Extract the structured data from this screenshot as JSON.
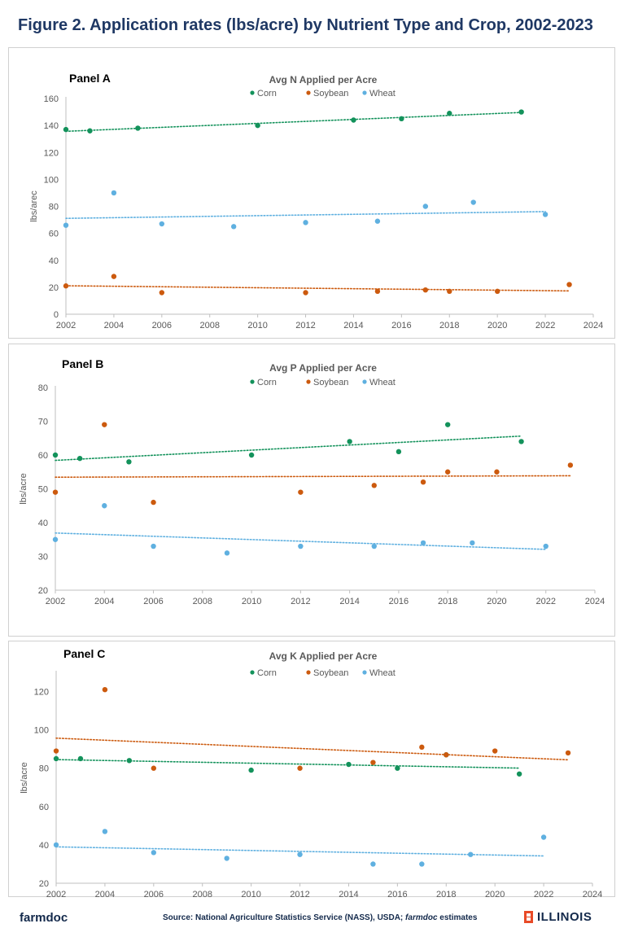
{
  "figure": {
    "title": "Figure 2. Application rates (lbs/acre) by Nutrient Type and Crop, 2002-2023"
  },
  "footer": {
    "logo": "farmdoc",
    "source_prefix": "Source: National Agriculture Statistics Service (NASS), USDA; ",
    "source_italic": "farmdoc",
    "source_suffix": " estimates",
    "brand": "ILLINOIS"
  },
  "colors": {
    "corn": "#13925b",
    "soybean": "#cc5a0e",
    "wheat": "#5fb0e0",
    "title": "#1f3864"
  },
  "chart_data": [
    {
      "type": "scatter",
      "panel": "Panel A",
      "title": "Avg N Applied  per Acre",
      "xlabel": "",
      "ylabel": "lbs/arec",
      "xlim": [
        2002,
        2024
      ],
      "ylim": [
        0,
        160
      ],
      "xticks": [
        2002,
        2004,
        2006,
        2008,
        2010,
        2012,
        2014,
        2016,
        2018,
        2020,
        2022,
        2024
      ],
      "yticks": [
        0,
        20,
        40,
        60,
        80,
        100,
        120,
        140,
        160
      ],
      "legend": "top-center",
      "trendline": "linear, dotted",
      "series": [
        {
          "name": "Corn",
          "x": [
            2002,
            2003,
            2005,
            2010,
            2014,
            2016,
            2018,
            2021
          ],
          "y": [
            137,
            136,
            138,
            140,
            144,
            145,
            149,
            150
          ]
        },
        {
          "name": "Soybean",
          "x": [
            2002,
            2004,
            2006,
            2012,
            2015,
            2017,
            2018,
            2020,
            2023
          ],
          "y": [
            21,
            28,
            16,
            16,
            17,
            18,
            17,
            17,
            22
          ]
        },
        {
          "name": "Wheat",
          "x": [
            2002,
            2004,
            2006,
            2009,
            2012,
            2015,
            2017,
            2019,
            2022
          ],
          "y": [
            66,
            90,
            67,
            65,
            68,
            69,
            80,
            83,
            74
          ]
        }
      ]
    },
    {
      "type": "scatter",
      "panel": "Panel B",
      "title": "Avg P Applied  per Acre",
      "xlabel": "",
      "ylabel": "lbs/acre",
      "xlim": [
        2002,
        2024
      ],
      "ylim": [
        20,
        80
      ],
      "xticks": [
        2002,
        2004,
        2006,
        2008,
        2010,
        2012,
        2014,
        2016,
        2018,
        2020,
        2022,
        2024
      ],
      "yticks": [
        20,
        30,
        40,
        50,
        60,
        70,
        80
      ],
      "legend": "top-center",
      "trendline": "linear, dotted",
      "series": [
        {
          "name": "Corn",
          "x": [
            2002,
            2003,
            2005,
            2010,
            2014,
            2016,
            2018,
            2021
          ],
          "y": [
            60,
            59,
            58,
            60,
            64,
            61,
            69,
            64
          ]
        },
        {
          "name": "Soybean",
          "x": [
            2002,
            2004,
            2006,
            2012,
            2015,
            2017,
            2018,
            2020,
            2023
          ],
          "y": [
            49,
            69,
            46,
            49,
            51,
            52,
            55,
            55,
            57
          ]
        },
        {
          "name": "Wheat",
          "x": [
            2002,
            2004,
            2006,
            2009,
            2012,
            2015,
            2017,
            2019,
            2022
          ],
          "y": [
            35,
            45,
            33,
            31,
            33,
            33,
            34,
            34,
            33
          ]
        }
      ]
    },
    {
      "type": "scatter",
      "panel": "Panel C",
      "title": "Avg K Applied  per Acre",
      "xlabel": "",
      "ylabel": "lbs/acre",
      "xlim": [
        2002,
        2024
      ],
      "ylim": [
        20,
        130
      ],
      "xticks": [
        2002,
        2004,
        2006,
        2008,
        2010,
        2012,
        2014,
        2016,
        2018,
        2020,
        2022,
        2024
      ],
      "yticks": [
        20,
        40,
        60,
        80,
        100,
        120
      ],
      "legend": "top-center",
      "trendline": "linear, dotted",
      "series": [
        {
          "name": "Corn",
          "x": [
            2002,
            2003,
            2005,
            2010,
            2014,
            2016,
            2018,
            2021
          ],
          "y": [
            85,
            85,
            84,
            79,
            82,
            80,
            87,
            77
          ]
        },
        {
          "name": "Soybean",
          "x": [
            2002,
            2004,
            2006,
            2012,
            2015,
            2017,
            2018,
            2020,
            2023
          ],
          "y": [
            89,
            121,
            80,
            80,
            83,
            91,
            87,
            89,
            88
          ]
        },
        {
          "name": "Wheat",
          "x": [
            2002,
            2004,
            2006,
            2009,
            2012,
            2015,
            2017,
            2019,
            2022
          ],
          "y": [
            40,
            47,
            36,
            33,
            35,
            30,
            30,
            35,
            44
          ]
        }
      ]
    }
  ]
}
